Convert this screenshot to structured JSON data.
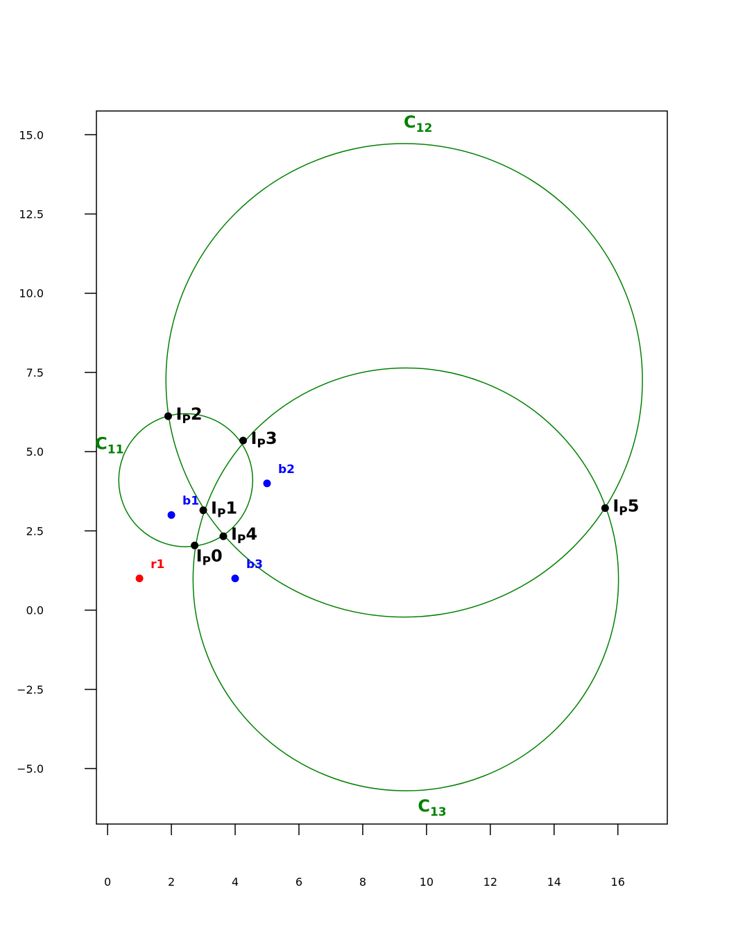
{
  "colors": {
    "circle": "#008000",
    "red_point": "#ff0000",
    "blue_point": "#0000ff",
    "intersection": "#000000",
    "axis": "#000000"
  },
  "chart_data": {
    "type": "scatter",
    "title": "",
    "xlabel": "",
    "ylabel": "",
    "xlim": [
      -0.35,
      17.55
    ],
    "ylim": [
      -6.75,
      15.75
    ],
    "grid": false,
    "legend": "none",
    "x_ticks": [
      {
        "value": 0,
        "label": "0"
      },
      {
        "value": 2,
        "label": "2"
      },
      {
        "value": 4,
        "label": "4"
      },
      {
        "value": 6,
        "label": "6"
      },
      {
        "value": 8,
        "label": "8"
      },
      {
        "value": 10,
        "label": "10"
      },
      {
        "value": 12,
        "label": "12"
      },
      {
        "value": 14,
        "label": "14"
      },
      {
        "value": 16,
        "label": "16"
      }
    ],
    "y_ticks": [
      {
        "value": -5.0,
        "label": "−5.0"
      },
      {
        "value": -2.5,
        "label": "−2.5"
      },
      {
        "value": 0.0,
        "label": "0.0"
      },
      {
        "value": 2.5,
        "label": "2.5"
      },
      {
        "value": 5.0,
        "label": "5.0"
      },
      {
        "value": 7.5,
        "label": "7.5"
      },
      {
        "value": 10.0,
        "label": "10.0"
      },
      {
        "value": 12.5,
        "label": "12.5"
      },
      {
        "value": 15.0,
        "label": "15.0"
      }
    ],
    "circles": [
      {
        "name": "C",
        "sub": "11",
        "cx": 2.45,
        "cy": 4.1,
        "r": 2.1,
        "label_at": "left"
      },
      {
        "name": "C",
        "sub": "12",
        "cx": 9.3,
        "cy": 7.25,
        "r": 7.47,
        "label_at": "top"
      },
      {
        "name": "C",
        "sub": "13",
        "cx": 9.35,
        "cy": 0.97,
        "r": 6.67,
        "label_at": "bottom"
      }
    ],
    "points": [
      {
        "name": "r1",
        "x": 1,
        "y": 1,
        "color": "red"
      },
      {
        "name": "b1",
        "x": 2,
        "y": 3,
        "color": "blue"
      },
      {
        "name": "b2",
        "x": 5,
        "y": 4,
        "color": "blue"
      },
      {
        "name": "b3",
        "x": 4,
        "y": 1,
        "color": "blue"
      }
    ],
    "intersections": [
      {
        "main": "I",
        "sub": "P",
        "idx": "0",
        "x": 2.73,
        "y": 2.04,
        "label_pos": "below"
      },
      {
        "main": "I",
        "sub": "P",
        "idx": "1",
        "x": 3.0,
        "y": 3.15,
        "label_pos": "right"
      },
      {
        "main": "I",
        "sub": "P",
        "idx": "2",
        "x": 1.9,
        "y": 6.12,
        "label_pos": "right"
      },
      {
        "main": "I",
        "sub": "P",
        "idx": "3",
        "x": 4.25,
        "y": 5.35,
        "label_pos": "right"
      },
      {
        "main": "I",
        "sub": "P",
        "idx": "4",
        "x": 3.63,
        "y": 2.33,
        "label_pos": "right"
      },
      {
        "main": "I",
        "sub": "P",
        "idx": "5",
        "x": 15.6,
        "y": 3.22,
        "label_pos": "right"
      }
    ]
  }
}
